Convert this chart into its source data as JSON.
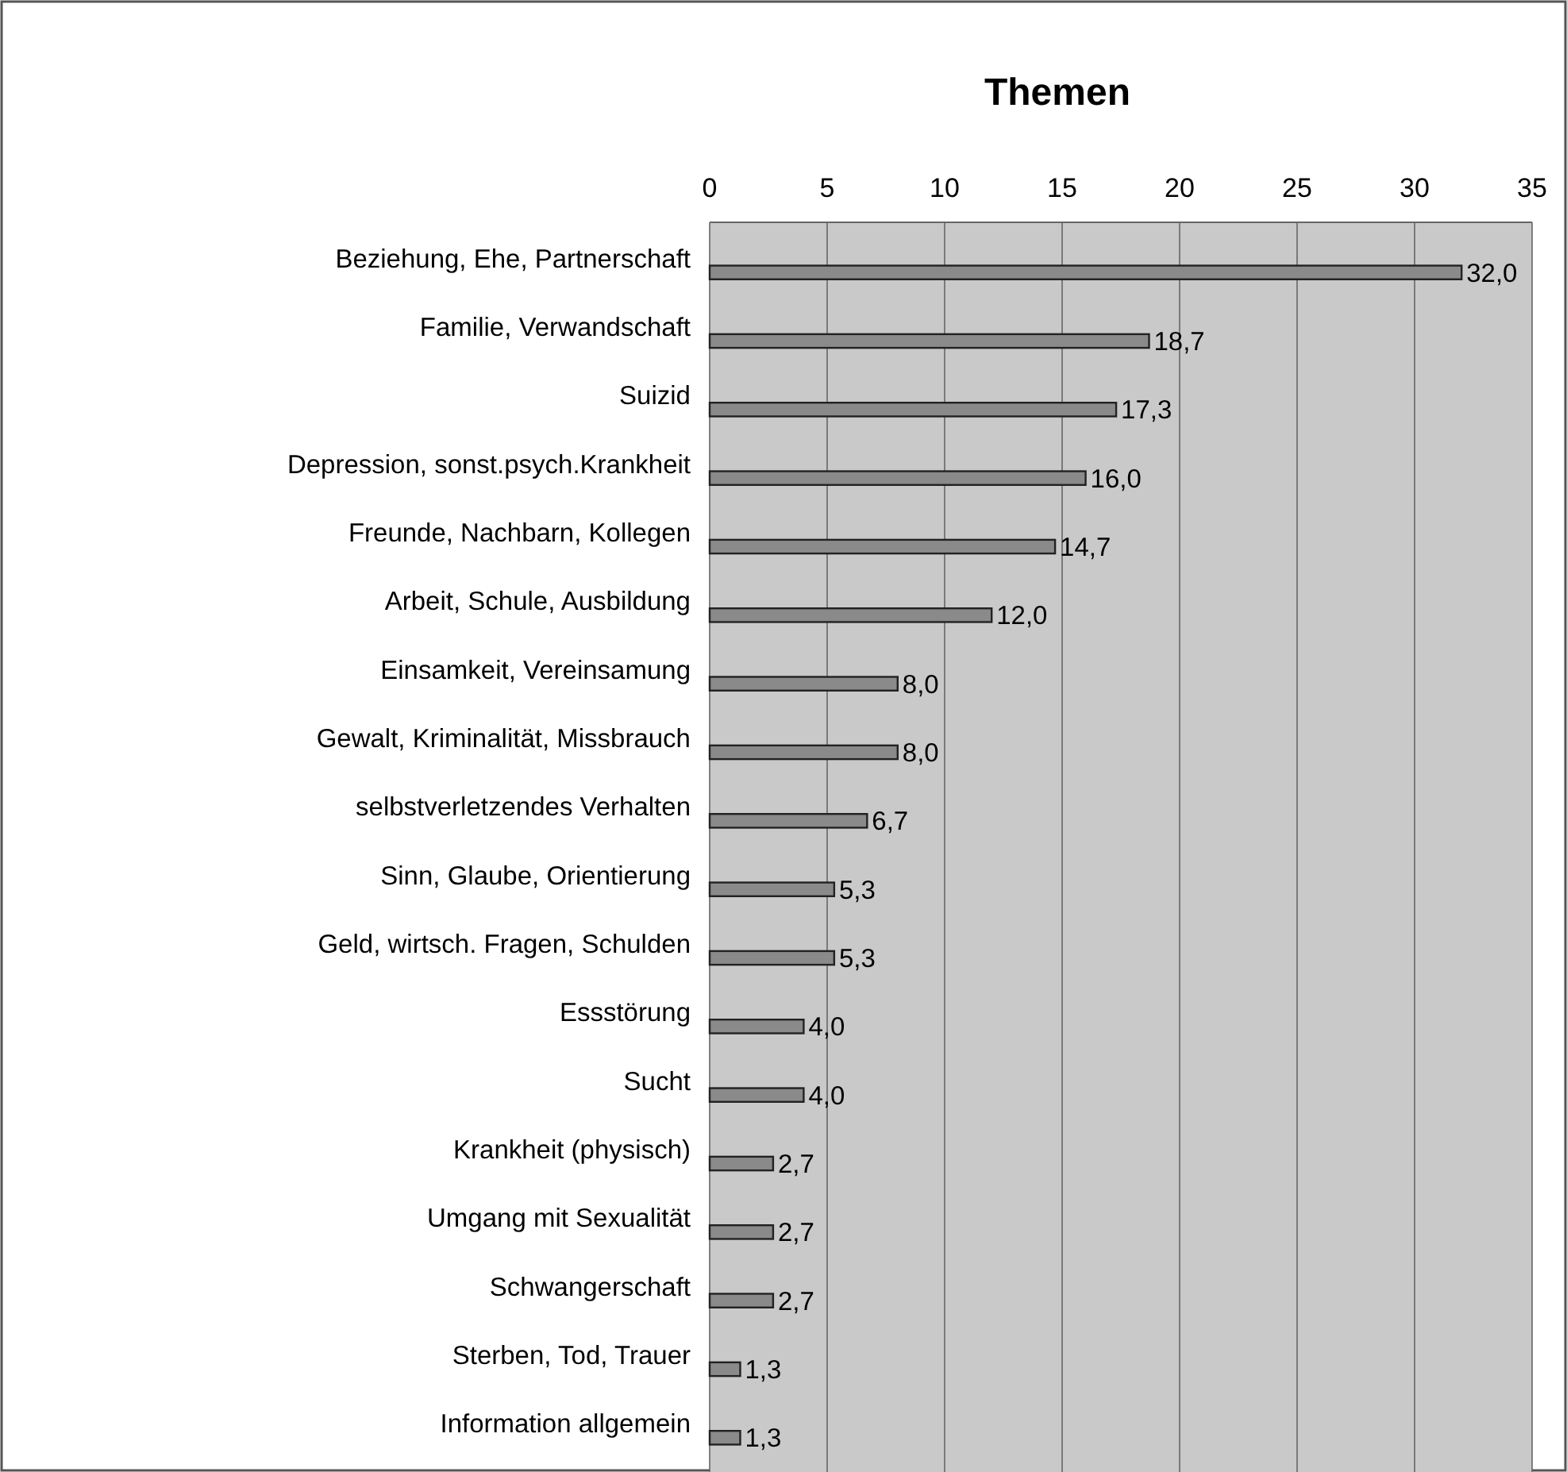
{
  "chart_data": {
    "type": "bar",
    "orientation": "horizontal",
    "title": "Themen",
    "categories": [
      "Beziehung, Ehe, Partnerschaft",
      "Familie, Verwandschaft",
      "Suizid",
      "Depression, sonst.psych.Krankheit",
      "Freunde, Nachbarn, Kollegen",
      "Arbeit, Schule, Ausbildung",
      "Einsamkeit, Vereinsamung",
      "Gewalt, Kriminalität, Missbrauch",
      "selbstverletzendes Verhalten",
      "Sinn, Glaube, Orientierung",
      "Geld, wirtsch. Fragen, Schulden",
      "Essstörung",
      "Sucht",
      "Krankheit (physisch)",
      "Umgang mit Sexualität",
      "Schwangerschaft",
      "Sterben, Tod, Trauer",
      "Information allgemein"
    ],
    "values": [
      32.0,
      18.7,
      17.3,
      16.0,
      14.7,
      12.0,
      8.0,
      8.0,
      6.7,
      5.3,
      5.3,
      4.0,
      4.0,
      2.7,
      2.7,
      2.7,
      1.3,
      1.3
    ],
    "value_labels": [
      "32,0",
      "18,7",
      "17,3",
      "16,0",
      "14,7",
      "12,0",
      "8,0",
      "8,0",
      "6,7",
      "5,3",
      "5,3",
      "4,0",
      "4,0",
      "2,7",
      "2,7",
      "2,7",
      "1,3",
      "1,3"
    ],
    "color": "#8a8a8a",
    "xlim": [
      0,
      35
    ],
    "xticks": [
      0,
      5,
      10,
      15,
      20,
      25,
      30,
      35
    ],
    "grid": "x"
  }
}
